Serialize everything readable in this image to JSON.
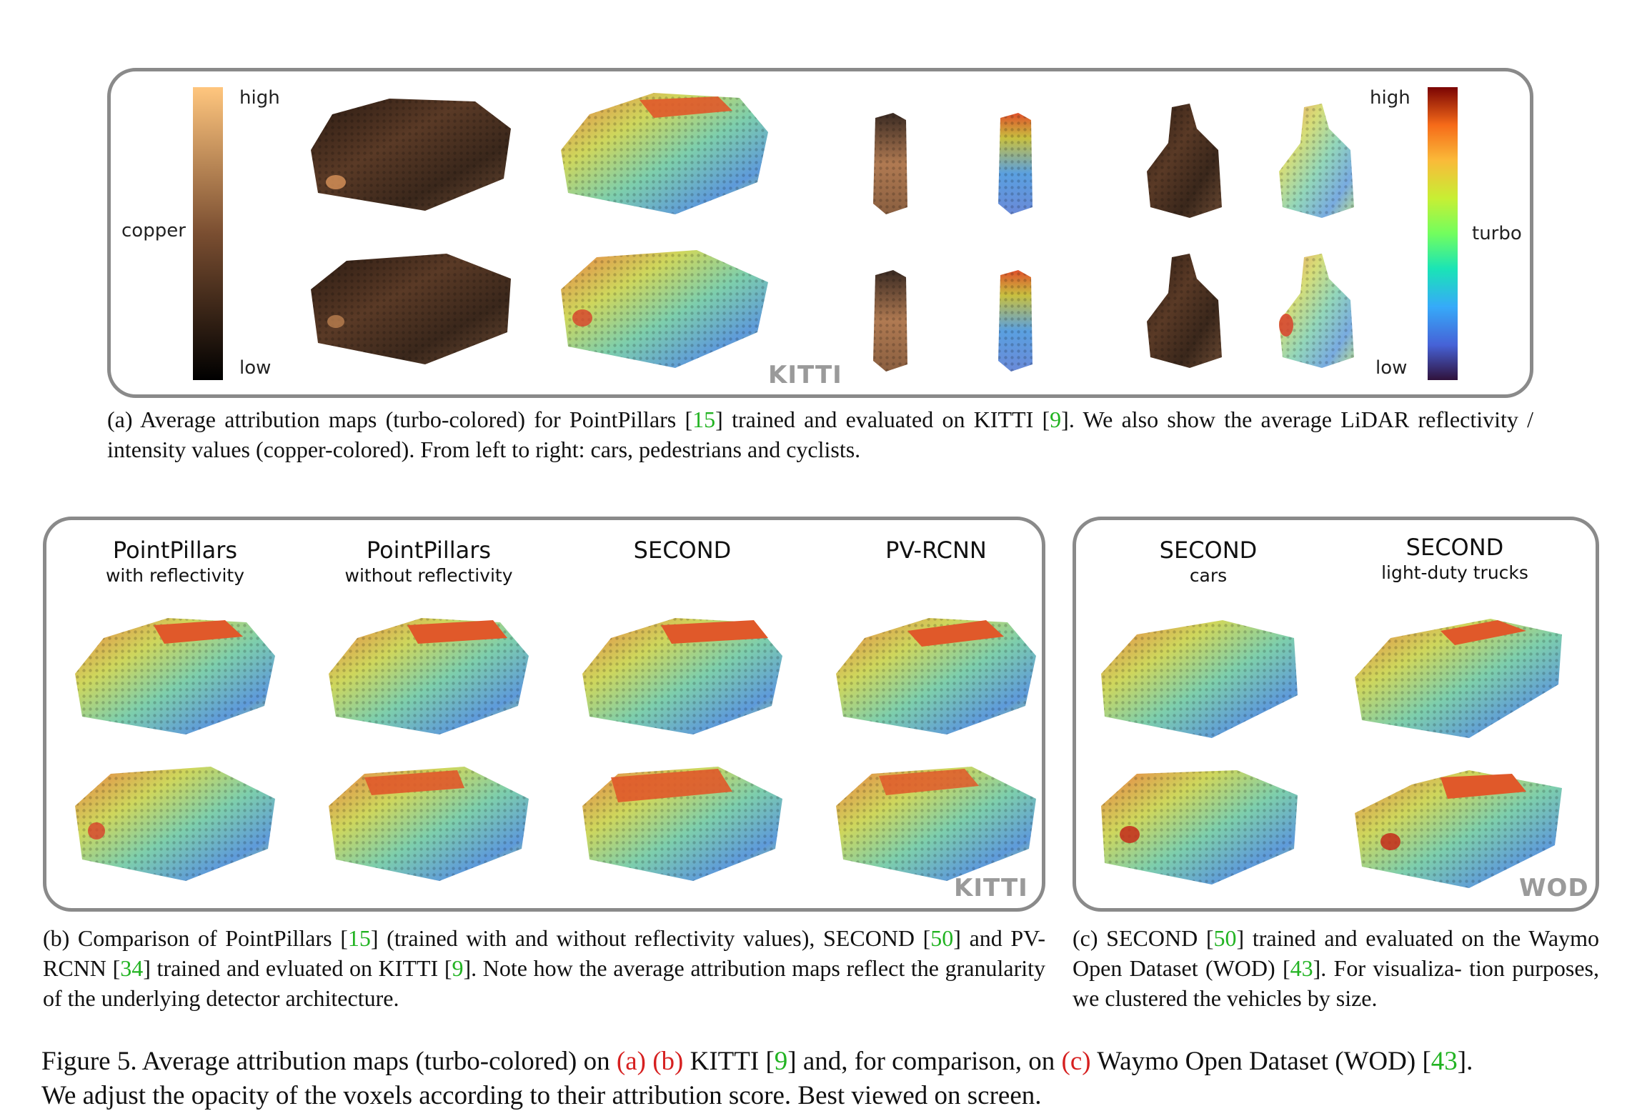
{
  "panel_a": {
    "copper_label": "copper",
    "copper_high": "high",
    "copper_low": "low",
    "turbo_label": "turbo",
    "turbo_high": "high",
    "turbo_low": "low",
    "dataset_tag": "KITTI",
    "caption_parts": [
      "(a)  Average attribution maps (turbo-colored) for PointPillars [",
      "15",
      "] trained and evaluated on KITTI [",
      "9",
      "].  We also show the average LiDAR reflectivity / intensity values (copper-colored). From left to right: cars, pedestrians and cyclists."
    ]
  },
  "panel_b": {
    "columns": [
      {
        "title": "PointPillars",
        "subtitle": "with reflectivity"
      },
      {
        "title": "PointPillars",
        "subtitle": "without reflectivity"
      },
      {
        "title": "SECOND",
        "subtitle": ""
      },
      {
        "title": "PV-RCNN",
        "subtitle": ""
      }
    ],
    "dataset_tag": "KITTI",
    "caption_parts": [
      "(b)  Comparison of PointPillars [",
      "15",
      "] (trained with and without reflectivity values), SECOND [",
      "50",
      "] and PV-RCNN [",
      "34",
      "] trained and evluated on KITTI [",
      "9",
      "]. Note how the average attribution maps reflect the granularity of the underlying detector architecture."
    ]
  },
  "panel_c": {
    "columns": [
      {
        "title": "SECOND",
        "subtitle": "cars"
      },
      {
        "title": "SECOND",
        "subtitle": "light-duty trucks"
      }
    ],
    "dataset_tag": "WOD",
    "caption_parts": [
      "(c)   SECOND [",
      "50",
      "] trained and evaluated on the Waymo Open Dataset (WOD) [",
      "43",
      "].  For visualiza- tion purposes, we clustered the vehicles by size."
    ]
  },
  "figure_caption": {
    "prefix": "Figure 5.  Average attribution maps (turbo-colored) on ",
    "a": "(a)",
    "b": "(b)",
    "mid1": " KITTI [",
    "ref9": "9",
    "mid2": "] and, for comparison, on ",
    "c": "(c)",
    "mid3": " Waymo Open Dataset (WOD) [",
    "ref43": "43",
    "end1": "].",
    "line2": "We adjust the opacity of the voxels according to their attribution score. Best viewed on screen."
  },
  "colors": {
    "panel_border": "#8a8a8a",
    "reference_green": "#22b322",
    "link_red": "#d62020",
    "tag_gray": "#9a9a9a"
  }
}
